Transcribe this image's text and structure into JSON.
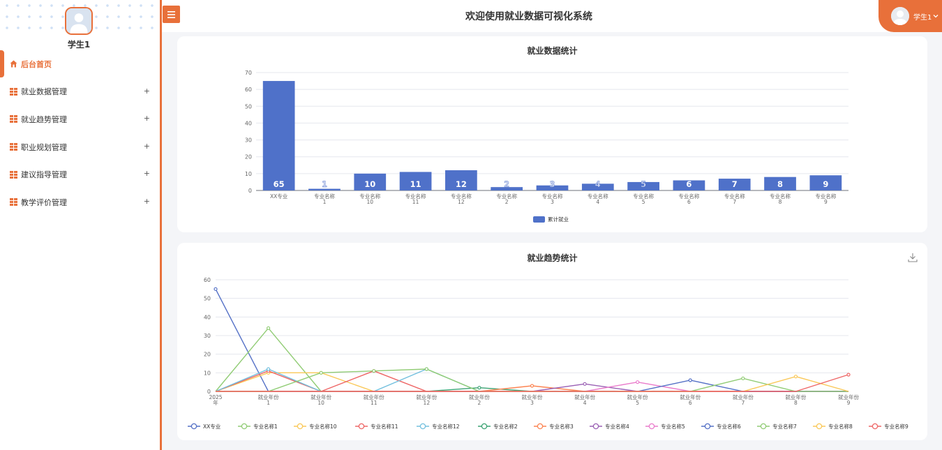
{
  "user": {
    "name": "学生1",
    "chip_label": "学生1"
  },
  "header": {
    "title": "欢迎使用就业数据可视化系统"
  },
  "menu": [
    {
      "label": "后台首页",
      "active": true,
      "icon": "home-icon"
    },
    {
      "label": "就业数据管理",
      "icon": "grid-icon",
      "expand": "+"
    },
    {
      "label": "就业趋势管理",
      "icon": "grid-icon",
      "expand": "+"
    },
    {
      "label": "职业规划管理",
      "icon": "grid-icon",
      "expand": "+"
    },
    {
      "label": "建议指导管理",
      "icon": "grid-icon",
      "expand": "+"
    },
    {
      "label": "教学评价管理",
      "icon": "grid-icon",
      "expand": "+"
    }
  ],
  "colors": {
    "accent": "#e8703a",
    "bar": "#4f71c9"
  },
  "chart_data": [
    {
      "type": "bar",
      "title": "就业数据统计",
      "categories": [
        "XX专业",
        "专业名称1",
        "专业名称10",
        "专业名称11",
        "专业名称12",
        "专业名称2",
        "专业名称3",
        "专业名称4",
        "专业名称5",
        "专业名称6",
        "专业名称7",
        "专业名称8",
        "专业名称9"
      ],
      "series": [
        {
          "name": "累计就业",
          "values": [
            65,
            1,
            10,
            11,
            12,
            2,
            3,
            4,
            5,
            6,
            7,
            8,
            9
          ]
        }
      ],
      "ylim": [
        0,
        70
      ],
      "yticks": [
        0,
        10,
        20,
        30,
        40,
        50,
        60,
        70
      ],
      "legend": "bottom",
      "grid": true
    },
    {
      "type": "line",
      "title": "就业趋势统计",
      "categories": [
        "2025年",
        "就业年份1",
        "就业年份10",
        "就业年份11",
        "就业年份12",
        "就业年份2",
        "就业年份3",
        "就业年份4",
        "就业年份5",
        "就业年份6",
        "就业年份7",
        "就业年份8",
        "就业年份9"
      ],
      "ylim": [
        0,
        60
      ],
      "yticks": [
        0,
        10,
        20,
        30,
        40,
        50,
        60
      ],
      "legend": "bottom",
      "grid": true,
      "series": [
        {
          "name": "XX专业",
          "color": "#5470c6",
          "values": [
            55,
            0,
            0,
            0,
            0,
            0,
            0,
            0,
            0,
            0,
            0,
            0,
            0
          ]
        },
        {
          "name": "专业名称1",
          "color": "#91cc75",
          "values": [
            0,
            34,
            0,
            0,
            0,
            0,
            0,
            0,
            0,
            0,
            0,
            0,
            0
          ]
        },
        {
          "name": "专业名称10",
          "color": "#fac858",
          "values": [
            0,
            10,
            10,
            0,
            0,
            0,
            0,
            0,
            0,
            0,
            0,
            0,
            0
          ]
        },
        {
          "name": "专业名称11",
          "color": "#ee6666",
          "values": [
            0,
            11,
            0,
            11,
            0,
            0,
            0,
            0,
            0,
            0,
            0,
            0,
            0
          ]
        },
        {
          "name": "专业名称12",
          "color": "#73c0de",
          "values": [
            0,
            12,
            0,
            0,
            12,
            0,
            0,
            0,
            0,
            0,
            0,
            0,
            0
          ]
        },
        {
          "name": "专业名称2",
          "color": "#3ba272",
          "values": [
            0,
            0,
            0,
            0,
            0,
            2,
            0,
            0,
            0,
            0,
            0,
            0,
            0
          ]
        },
        {
          "name": "专业名称3",
          "color": "#fc8452",
          "values": [
            0,
            0,
            0,
            0,
            0,
            0,
            3,
            0,
            0,
            0,
            0,
            0,
            0
          ]
        },
        {
          "name": "专业名称4",
          "color": "#9a60b4",
          "values": [
            0,
            0,
            0,
            0,
            0,
            0,
            0,
            4,
            0,
            0,
            0,
            0,
            0
          ]
        },
        {
          "name": "专业名称5",
          "color": "#ea7ccc",
          "values": [
            0,
            0,
            0,
            0,
            0,
            0,
            0,
            0,
            5,
            0,
            0,
            0,
            0
          ]
        },
        {
          "name": "专业名称6",
          "color": "#5470c6",
          "values": [
            0,
            0,
            0,
            0,
            0,
            0,
            0,
            0,
            0,
            6,
            0,
            0,
            0
          ]
        },
        {
          "name": "专业名称7",
          "color": "#91cc75",
          "values": [
            0,
            0,
            10,
            11,
            12,
            0,
            0,
            0,
            0,
            0,
            7,
            0,
            0
          ]
        },
        {
          "name": "专业名称8",
          "color": "#fac858",
          "values": [
            0,
            0,
            0,
            0,
            0,
            0,
            0,
            0,
            0,
            0,
            0,
            8,
            0
          ]
        },
        {
          "name": "专业名称9",
          "color": "#ee6666",
          "values": [
            0,
            0,
            0,
            0,
            0,
            0,
            0,
            0,
            0,
            0,
            0,
            0,
            9
          ]
        }
      ]
    }
  ]
}
